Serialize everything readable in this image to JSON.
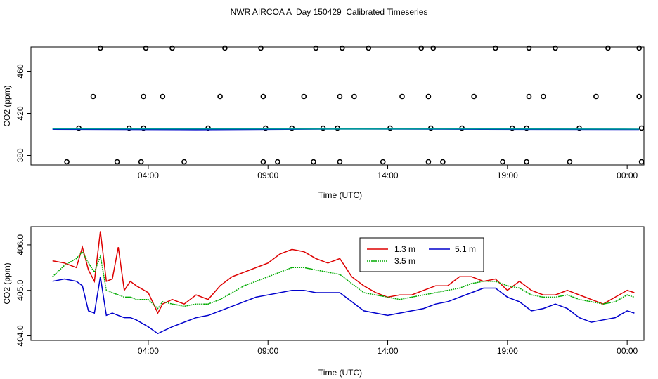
{
  "title": "NWR AIRCOA A  Day 150429  Calibrated Timeseries",
  "chart_data": [
    {
      "type": "scatter",
      "xlabel": "Time (UTC)",
      "ylabel": "CO2 (ppm)",
      "x_ticks": [
        "04:00",
        "09:00",
        "14:00",
        "19:00",
        "00:00"
      ],
      "x_tick_hours": [
        4,
        9,
        14,
        19,
        24
      ],
      "xlim_hours": [
        -0.9,
        24.7
      ],
      "y_ticks": [
        380,
        420,
        460
      ],
      "ylim": [
        371,
        483
      ],
      "grid": false,
      "series": [
        {
          "color": "#000000",
          "marker": "open-circle",
          "points": [
            [
              0.6,
              374
            ],
            [
              2.7,
              374
            ],
            [
              3.7,
              374
            ],
            [
              5.5,
              374
            ],
            [
              8.8,
              374
            ],
            [
              9.4,
              374
            ],
            [
              10.9,
              374
            ],
            [
              12,
              374
            ],
            [
              13.8,
              374
            ],
            [
              15.7,
              374
            ],
            [
              16.3,
              374
            ],
            [
              18.8,
              374
            ],
            [
              19.8,
              374
            ],
            [
              21.6,
              374
            ],
            [
              24.6,
              374
            ],
            [
              1.7,
              436
            ],
            [
              3.8,
              436
            ],
            [
              4.6,
              436
            ],
            [
              7,
              436
            ],
            [
              8.8,
              436
            ],
            [
              10.5,
              436
            ],
            [
              12,
              436
            ],
            [
              12.6,
              436
            ],
            [
              14.6,
              436
            ],
            [
              15.7,
              436
            ],
            [
              17.6,
              436
            ],
            [
              19.9,
              436
            ],
            [
              20.5,
              436
            ],
            [
              22.7,
              436
            ],
            [
              24.5,
              436
            ],
            [
              2,
              482
            ],
            [
              3.9,
              482
            ],
            [
              5,
              482
            ],
            [
              7.2,
              482
            ],
            [
              8.7,
              482
            ],
            [
              11,
              482
            ],
            [
              12.1,
              482
            ],
            [
              13.2,
              482
            ],
            [
              15.4,
              482
            ],
            [
              15.9,
              482
            ],
            [
              18.5,
              482
            ],
            [
              19.9,
              482
            ],
            [
              21,
              482
            ],
            [
              23.2,
              482
            ],
            [
              24.5,
              482
            ],
            [
              1.1,
              406
            ],
            [
              3.2,
              406
            ],
            [
              3.8,
              406
            ],
            [
              6.5,
              406
            ],
            [
              8.9,
              406
            ],
            [
              10,
              406
            ],
            [
              11.3,
              406
            ],
            [
              11.9,
              406
            ],
            [
              14.1,
              406
            ],
            [
              15.8,
              406
            ],
            [
              17.1,
              406
            ],
            [
              19.2,
              406
            ],
            [
              19.8,
              406
            ],
            [
              22,
              406
            ],
            [
              24.6,
              406
            ]
          ]
        },
        {
          "color": "#0000cc",
          "marker": "line",
          "points": [
            [
              0,
              404.9
            ],
            [
              6,
              404.5
            ],
            [
              12,
              405.1
            ],
            [
              18,
              404.9
            ],
            [
              24.5,
              404.7
            ]
          ]
        },
        {
          "color": "#990099",
          "marker": "line",
          "points": [
            [
              15.5,
              405.4
            ],
            [
              16.6,
              405.4
            ],
            [
              19.9,
              405.3
            ],
            [
              20.8,
              405.2
            ]
          ]
        },
        {
          "color": "#009999",
          "marker": "line",
          "points": [
            [
              0,
              405.3
            ],
            [
              6,
              405.2
            ],
            [
              12,
              405.1
            ],
            [
              18,
              405.2
            ],
            [
              24.5,
              405
            ]
          ]
        }
      ]
    },
    {
      "type": "line",
      "xlabel": "Time (UTC)",
      "ylabel": "CO2 (ppm)",
      "x_ticks": [
        "04:00",
        "09:00",
        "14:00",
        "19:00",
        "00:00"
      ],
      "x_tick_hours": [
        4,
        9,
        14,
        19,
        24
      ],
      "xlim_hours": [
        -0.9,
        24.7
      ],
      "y_ticks": [
        "404.0",
        "405.0",
        "406.0"
      ],
      "y_tick_values": [
        404,
        405,
        406
      ],
      "ylim": [
        403.9,
        406.4
      ],
      "grid": false,
      "legend_position": "top-center",
      "series": [
        {
          "name": "1.3 m",
          "color": "#dd0000",
          "x": [
            0,
            0.5,
            1,
            1.25,
            1.5,
            1.75,
            2,
            2.25,
            2.5,
            2.75,
            3,
            3.25,
            3.5,
            4,
            4.4,
            4.6,
            5,
            5.5,
            6,
            6.5,
            7,
            7.5,
            8,
            8.5,
            9,
            9.5,
            10,
            10.5,
            11,
            11.5,
            12,
            12.5,
            13,
            13.5,
            14,
            14.5,
            15,
            15.5,
            16,
            16.5,
            17,
            17.5,
            18,
            18.5,
            19,
            19.5,
            20,
            20.5,
            21,
            21.5,
            22,
            22.5,
            23,
            23.5,
            24,
            24.3
          ],
          "y": [
            405.65,
            405.6,
            405.5,
            405.95,
            405.45,
            405.2,
            406.3,
            405.2,
            405.25,
            405.95,
            405.0,
            405.2,
            405.1,
            404.95,
            404.5,
            404.7,
            404.8,
            404.7,
            404.9,
            404.8,
            405.1,
            405.3,
            405.4,
            405.5,
            405.6,
            405.8,
            405.9,
            405.85,
            405.7,
            405.6,
            405.7,
            405.3,
            405.1,
            404.95,
            404.85,
            404.9,
            404.9,
            405.0,
            405.1,
            405.1,
            405.3,
            405.3,
            405.2,
            405.25,
            405.0,
            405.2,
            405.0,
            404.9,
            404.9,
            405.0,
            404.9,
            404.8,
            404.7,
            404.85,
            405.0,
            404.95
          ]
        },
        {
          "name": "3.5 m",
          "color": "#00aa00",
          "x": [
            0,
            0.5,
            1,
            1.25,
            1.5,
            1.75,
            2,
            2.25,
            2.5,
            2.75,
            3,
            3.25,
            3.5,
            4,
            4.4,
            4.6,
            5,
            5.5,
            6,
            6.5,
            7,
            7.5,
            8,
            8.5,
            9,
            9.5,
            10,
            10.5,
            11,
            11.5,
            12,
            12.5,
            13,
            13.5,
            14,
            14.5,
            15,
            15.5,
            16,
            16.5,
            17,
            17.5,
            18,
            18.5,
            19,
            19.5,
            20,
            20.5,
            21,
            21.5,
            22,
            22.5,
            23,
            23.5,
            24,
            24.3
          ],
          "y": [
            405.3,
            405.55,
            405.7,
            405.85,
            405.6,
            405.4,
            405.75,
            405.0,
            404.95,
            404.9,
            404.85,
            404.85,
            404.8,
            404.8,
            404.6,
            404.75,
            404.7,
            404.65,
            404.7,
            404.7,
            404.8,
            404.95,
            405.1,
            405.2,
            405.3,
            405.4,
            405.5,
            405.5,
            405.45,
            405.4,
            405.35,
            405.15,
            404.95,
            404.9,
            404.85,
            404.8,
            404.85,
            404.9,
            404.95,
            405.0,
            405.05,
            405.15,
            405.2,
            405.2,
            405.1,
            405.05,
            404.9,
            404.85,
            404.85,
            404.9,
            404.8,
            404.75,
            404.7,
            404.75,
            404.9,
            404.85
          ]
        },
        {
          "name": "5.1 m",
          "color": "#0000cc",
          "x": [
            0,
            0.5,
            1,
            1.25,
            1.5,
            1.75,
            2,
            2.25,
            2.5,
            2.75,
            3,
            3.25,
            3.5,
            4,
            4.4,
            4.6,
            5,
            5.5,
            6,
            6.5,
            7,
            7.5,
            8,
            8.5,
            9,
            9.5,
            10,
            10.5,
            11,
            11.5,
            12,
            12.5,
            13,
            13.5,
            14,
            14.5,
            15,
            15.5,
            16,
            16.5,
            17,
            17.5,
            18,
            18.5,
            19,
            19.5,
            20,
            20.5,
            21,
            21.5,
            22,
            22.5,
            23,
            23.5,
            24,
            24.3
          ],
          "y": [
            405.2,
            405.25,
            405.2,
            405.1,
            404.55,
            404.5,
            405.3,
            404.45,
            404.5,
            404.45,
            404.4,
            404.4,
            404.35,
            404.2,
            404.05,
            404.1,
            404.2,
            404.3,
            404.4,
            404.45,
            404.55,
            404.65,
            404.75,
            404.85,
            404.9,
            404.95,
            405.0,
            405.0,
            404.95,
            404.95,
            404.95,
            404.75,
            404.55,
            404.5,
            404.45,
            404.5,
            404.55,
            404.6,
            404.7,
            404.75,
            404.85,
            404.95,
            405.05,
            405.05,
            404.85,
            404.75,
            404.55,
            404.6,
            404.7,
            404.6,
            404.4,
            404.3,
            404.35,
            404.4,
            404.55,
            404.5
          ]
        }
      ]
    }
  ]
}
